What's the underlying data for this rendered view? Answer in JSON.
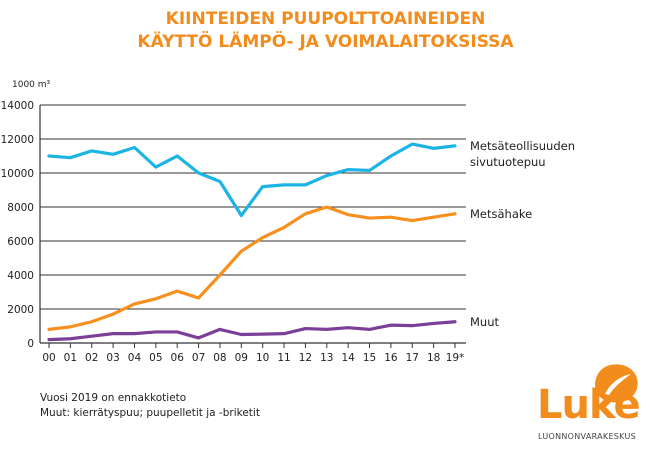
{
  "chart_data": {
    "type": "line",
    "title_lines": [
      "KIINTEIDEN PUUPOLTTOAINEIDEN",
      "KÄYTTÖ LÄMPÖ- JA VOIMALAITOKSISSA"
    ],
    "ylabel": "1000 m³",
    "ylim": [
      0,
      14000
    ],
    "yticks": [
      0,
      2000,
      4000,
      6000,
      8000,
      10000,
      12000,
      14000
    ],
    "grid": true,
    "categories": [
      "00",
      "01",
      "02",
      "03",
      "04",
      "05",
      "06",
      "07",
      "08",
      "09",
      "10",
      "11",
      "12",
      "13",
      "14",
      "15",
      "16",
      "17",
      "18",
      "19*"
    ],
    "series": [
      {
        "name": "Metsäteollisuuden sivutuotepuu",
        "label_lines": [
          "Metsäteollisuuden",
          "sivutuotepuu"
        ],
        "color": "#1bb4e4",
        "values": [
          11000,
          10900,
          11300,
          11100,
          11500,
          10350,
          11000,
          10000,
          9500,
          7500,
          9200,
          9300,
          9300,
          9850,
          10200,
          10150,
          11000,
          11700,
          11450,
          11600
        ]
      },
      {
        "name": "Metsähake",
        "label_lines": [
          "Metsähake"
        ],
        "color": "#f7901e",
        "values": [
          800,
          950,
          1250,
          1700,
          2300,
          2600,
          3050,
          2650,
          4000,
          5400,
          6200,
          6800,
          7600,
          8000,
          7550,
          7350,
          7400,
          7200,
          7400,
          7600
        ]
      },
      {
        "name": "Muut",
        "label_lines": [
          "Muut"
        ],
        "color": "#7b3f98",
        "values": [
          200,
          250,
          400,
          550,
          550,
          650,
          650,
          300,
          800,
          500,
          520,
          550,
          850,
          800,
          900,
          800,
          1050,
          1020,
          1150,
          1250
        ]
      }
    ]
  },
  "notes": [
    "Vuosi 2019 on ennakkotieto",
    "Muut: kierrätyspuu; puupelletit ja -briketit"
  ],
  "logo": {
    "name": "Luke",
    "subtitle": "LUONNONVARAKESKUS",
    "color": "#f28c1d"
  }
}
